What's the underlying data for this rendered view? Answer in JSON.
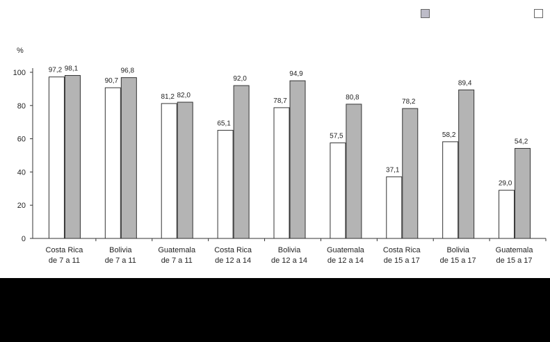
{
  "colors": {
    "series_1": "#ffffff",
    "series_2": "#b4b4b4",
    "axis": "#333333",
    "legend_swatch_1": "#bdbcc8"
  },
  "chart_data": {
    "type": "bar",
    "ylabel": "%",
    "ylim": [
      0,
      100
    ],
    "yticks": [
      "0",
      "20",
      "40",
      "60",
      "80",
      "100"
    ],
    "grid": false,
    "legend": "top-right",
    "categories": [
      [
        "Costa Rica",
        "de 7 a 11"
      ],
      [
        "Bolivia",
        "de 7 a 11"
      ],
      [
        "Guatemala",
        "de 7 a 11"
      ],
      [
        "Costa Rica",
        "de 12 a 14"
      ],
      [
        "Bolivia",
        "de 12 a 14"
      ],
      [
        "Guatemala",
        "de 12 a 14"
      ],
      [
        "Costa Rica",
        "de 15 a 17"
      ],
      [
        "Bolivia",
        "de 15 a 17"
      ],
      [
        "Guatemala",
        "de 15 a 17"
      ]
    ],
    "series": [
      {
        "values": [
          97.2,
          90.7,
          81.2,
          65.1,
          78.7,
          57.5,
          37.1,
          58.2,
          29.0
        ],
        "labels": [
          "97,2",
          "90,7",
          "81,2",
          "65,1",
          "78,7",
          "57,5",
          "37,1",
          "58,2",
          "29,0"
        ]
      },
      {
        "values": [
          98.1,
          96.8,
          82.0,
          92.0,
          94.9,
          80.8,
          78.2,
          89.4,
          54.2
        ],
        "labels": [
          "98,1",
          "96,8",
          "82,0",
          "92,0",
          "94,9",
          "80,8",
          "78,2",
          "89,4",
          "54,2"
        ]
      }
    ]
  }
}
